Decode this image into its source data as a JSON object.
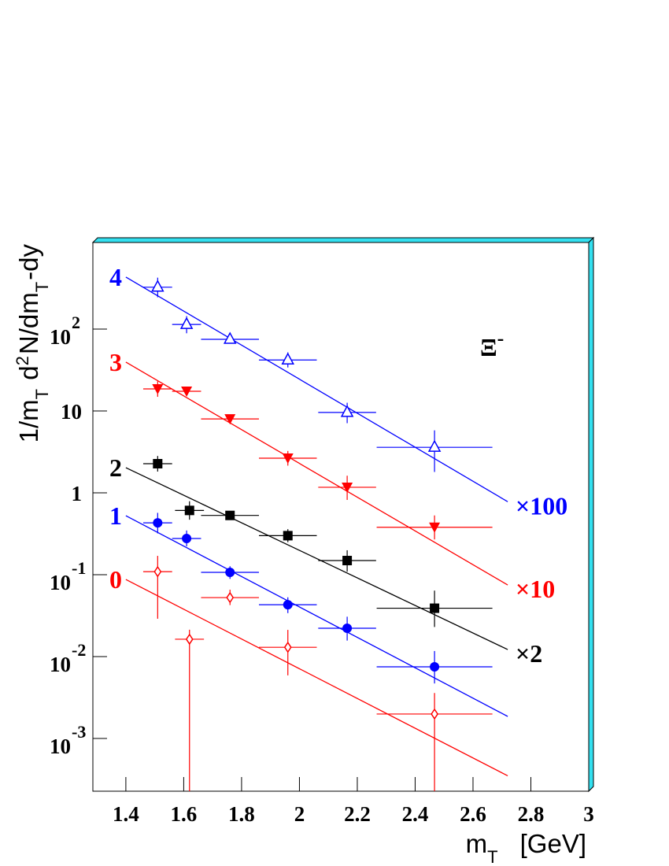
{
  "chart_data": {
    "type": "scatter",
    "log_y": true,
    "xlabel": {
      "parts": [
        "m",
        "T",
        "[GeV]"
      ],
      "styles": [
        "normal",
        "sub",
        "normal"
      ]
    },
    "ylabel": {
      "parts": [
        "1/m",
        "T",
        " d",
        "2",
        "N/dm",
        "T",
        "-dy"
      ],
      "styles": [
        "normal",
        "sub",
        "normal",
        "sup",
        "normal",
        "sub",
        "normal"
      ]
    },
    "annotation": {
      "text": "Ξ",
      "exponent": "-"
    },
    "xlim": [
      1.286,
      3
    ],
    "ylim": [
      0.000227,
      1143
    ],
    "xticks": [
      1.4,
      1.6,
      1.8,
      2,
      2.2,
      2.4,
      2.6,
      2.8,
      3
    ],
    "yticks": [
      {
        "value": 0.001,
        "label": "10",
        "exponent": "-3"
      },
      {
        "value": 0.01,
        "label": "10",
        "exponent": "-2"
      },
      {
        "value": 0.1,
        "label": "10",
        "exponent": "-1"
      },
      1,
      10,
      {
        "value": 100,
        "label": "10",
        "exponent": "2"
      }
    ],
    "series": [
      {
        "name": "4",
        "scale_label": "×100",
        "color": "#0000ff",
        "marker": "triangle-open",
        "x": [
          1.51,
          1.61,
          1.76,
          1.96,
          2.165,
          2.467
        ],
        "xerr": [
          0.05,
          0.05,
          0.1,
          0.1,
          0.1,
          0.2
        ],
        "values": [
          325,
          114,
          75,
          42,
          9.6,
          3.6
        ],
        "yerr_low": [
          80,
          25,
          7,
          8,
          2.5,
          1.8
        ],
        "yerr_high": [
          100,
          30,
          8,
          10,
          3,
          2.2
        ],
        "fit": {
          "x": [
            1.4,
            2.72
          ],
          "y": [
            432,
            0.78
          ]
        }
      },
      {
        "name": "3",
        "scale_label": "×10",
        "color": "#ff0000",
        "marker": "triangle-down",
        "x": [
          1.51,
          1.61,
          1.76,
          1.96,
          2.165,
          2.467
        ],
        "xerr": [
          0.05,
          0.05,
          0.1,
          0.1,
          0.1,
          0.2
        ],
        "values": [
          18.6,
          17.4,
          8.0,
          2.65,
          1.17,
          0.38
        ],
        "yerr_low": [
          3.7,
          2,
          0.5,
          0.5,
          0.35,
          0.11
        ],
        "yerr_high": [
          4.5,
          2,
          0.5,
          0.6,
          0.45,
          0.15
        ],
        "fit": {
          "x": [
            1.4,
            2.72
          ],
          "y": [
            39.5,
            0.075
          ]
        }
      },
      {
        "name": "2",
        "scale_label": "×2",
        "color": "#000000",
        "marker": "square",
        "x": [
          1.51,
          1.62,
          1.76,
          1.96,
          2.165,
          2.467
        ],
        "xerr": [
          0.05,
          0.05,
          0.1,
          0.1,
          0.1,
          0.2
        ],
        "values": [
          2.27,
          0.61,
          0.53,
          0.3,
          0.149,
          0.039
        ],
        "yerr_low": [
          0.45,
          0.14,
          0.05,
          0.05,
          0.04,
          0.016
        ],
        "yerr_high": [
          0.55,
          0.18,
          0.05,
          0.06,
          0.05,
          0.025
        ],
        "fit": {
          "x": [
            1.4,
            2.72
          ],
          "y": [
            2.03,
            0.0122
          ]
        }
      },
      {
        "name": "1",
        "color": "#0000ff",
        "marker": "circle",
        "x": [
          1.51,
          1.61,
          1.76,
          1.96,
          2.165,
          2.467
        ],
        "xerr": [
          0.05,
          0.05,
          0.1,
          0.1,
          0.1,
          0.2
        ],
        "values": [
          0.43,
          0.277,
          0.107,
          0.043,
          0.0222,
          0.0075
        ],
        "yerr_low": [
          0.11,
          0.055,
          0.018,
          0.009,
          0.0065,
          0.0028
        ],
        "yerr_high": [
          0.14,
          0.07,
          0.02,
          0.01,
          0.0085,
          0.0042
        ],
        "fit": {
          "x": [
            1.4,
            2.72
          ],
          "y": [
            0.526,
            0.00186
          ]
        }
      },
      {
        "name": "0",
        "color": "#ff0000",
        "marker": "diamond-open",
        "x": [
          1.51,
          1.62,
          1.76,
          1.96,
          2.467
        ],
        "xerr": [
          0.05,
          0.05,
          0.1,
          0.1,
          0.2
        ],
        "values": [
          0.109,
          0.0163,
          0.0526,
          0.013,
          0.00199
        ],
        "yerr_low": [
          0.08,
          0.0163,
          0.01,
          0.0071,
          0.00199
        ],
        "yerr_high": [
          0.061,
          0.005,
          0.013,
          0.0082,
          0.0016
        ],
        "fit": {
          "x": [
            1.4,
            2.72
          ],
          "y": [
            0.0875,
            0.00035
          ]
        }
      }
    ]
  }
}
